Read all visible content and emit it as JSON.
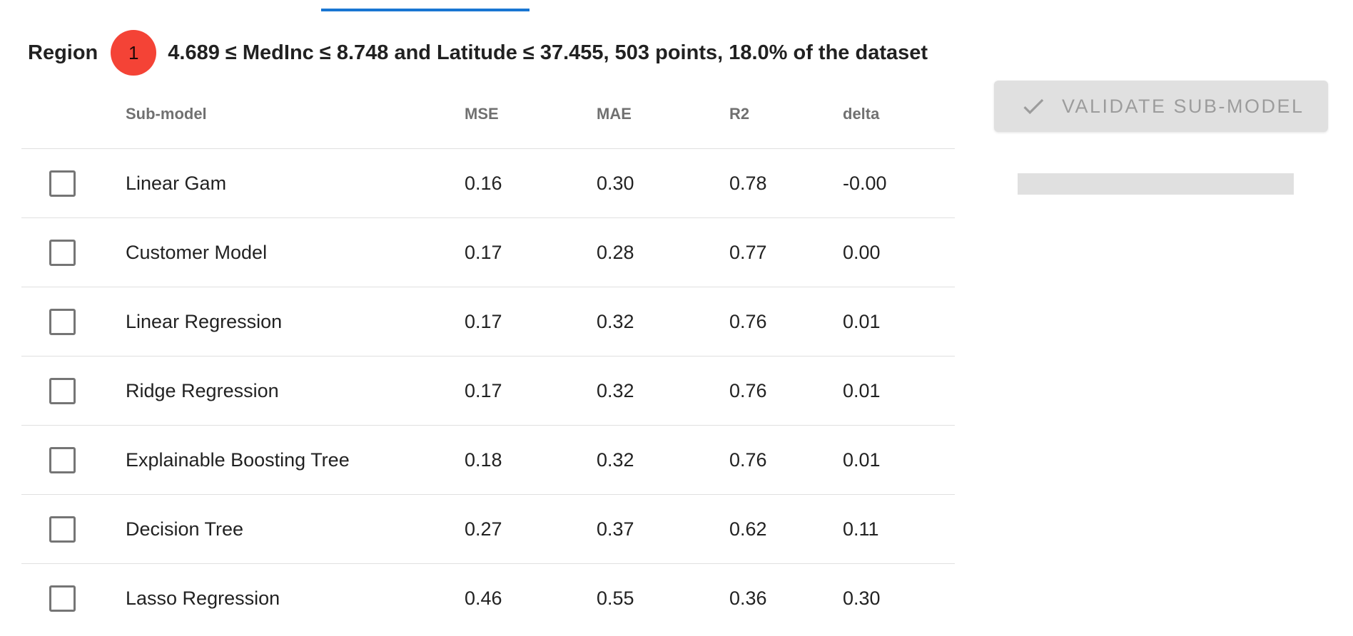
{
  "region": {
    "label": "Region",
    "badge": "1",
    "description": "4.689 ≤ MedInc ≤ 8.748 and Latitude ≤ 37.455, 503 points, 18.0% of the dataset"
  },
  "table": {
    "headers": {
      "submodel": "Sub-model",
      "mse": "MSE",
      "mae": "MAE",
      "r2": "R2",
      "delta": "delta"
    },
    "rows": [
      {
        "name": "Linear Gam",
        "mse": "0.16",
        "mae": "0.30",
        "r2": "0.78",
        "delta": "-0.00",
        "checked": false
      },
      {
        "name": "Customer Model",
        "mse": "0.17",
        "mae": "0.28",
        "r2": "0.77",
        "delta": "0.00",
        "checked": false
      },
      {
        "name": "Linear Regression",
        "mse": "0.17",
        "mae": "0.32",
        "r2": "0.76",
        "delta": "0.01",
        "checked": false
      },
      {
        "name": "Ridge Regression",
        "mse": "0.17",
        "mae": "0.32",
        "r2": "0.76",
        "delta": "0.01",
        "checked": false
      },
      {
        "name": "Explainable Boosting Tree",
        "mse": "0.18",
        "mae": "0.32",
        "r2": "0.76",
        "delta": "0.01",
        "checked": false
      },
      {
        "name": "Decision Tree",
        "mse": "0.27",
        "mae": "0.37",
        "r2": "0.62",
        "delta": "0.11",
        "checked": false
      },
      {
        "name": "Lasso Regression",
        "mse": "0.46",
        "mae": "0.55",
        "r2": "0.36",
        "delta": "0.30",
        "checked": false
      }
    ]
  },
  "actions": {
    "validate_label": "Validate sub-model",
    "validate_disabled": true
  },
  "colors": {
    "badge": "#f44336",
    "tab_indicator": "#1976d2",
    "button_disabled_bg": "#e0e0e0"
  },
  "icons": {
    "validate": "check-icon"
  }
}
